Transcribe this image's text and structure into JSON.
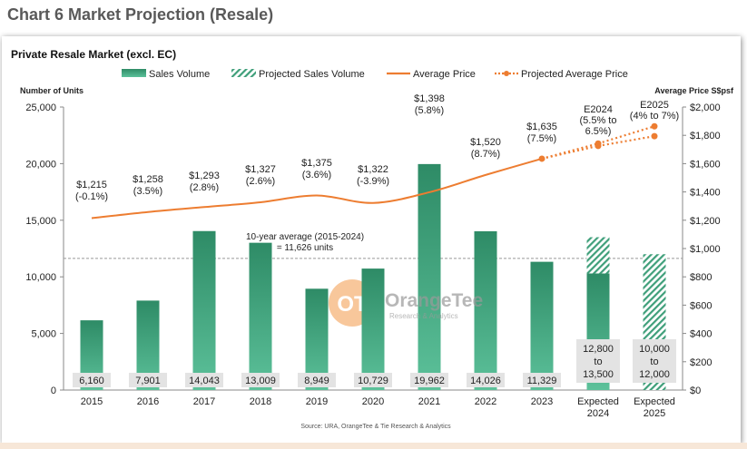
{
  "page": {
    "heading": "Chart 6 Market Projection (Resale)"
  },
  "chart_data": {
    "type": "bar",
    "title": "Private Resale Market (excl. EC)",
    "ylabel_left": "Number of Units",
    "ylabel_right": "Average Price S$psf",
    "ylim_left": [
      0,
      25000
    ],
    "ylim_right": [
      0,
      2000
    ],
    "yticks_left": [
      "0",
      "5,000",
      "10,000",
      "15,000",
      "20,000",
      "25,000"
    ],
    "yticks_right": [
      "$0",
      "$200",
      "$400",
      "$600",
      "$800",
      "$1,000",
      "$1,200",
      "$1,400",
      "$1,600",
      "$1,800",
      "$2,000"
    ],
    "categories": [
      "2015",
      "2016",
      "2017",
      "2018",
      "2019",
      "2020",
      "2021",
      "2022",
      "2023",
      "Expected\n2024",
      "Expected\n2025"
    ],
    "legend": [
      "Sales Volume",
      "Projected Sales Volume",
      "Average Price",
      "Projected Average Price"
    ],
    "sales_volume": [
      6160,
      7901,
      14043,
      13009,
      8949,
      10729,
      19962,
      14026,
      11329,
      10300,
      0
    ],
    "projected_sales_volume": [
      null,
      null,
      null,
      null,
      null,
      null,
      null,
      null,
      null,
      [
        10300,
        13500
      ],
      [
        0,
        12000
      ]
    ],
    "volume_labels": [
      "6,160",
      "7,901",
      "14,043",
      "13,009",
      "8,949",
      "10,729",
      "19,962",
      "14,026",
      "11,329",
      "12,800\nto\n13,500",
      "10,000\nto\n12,000"
    ],
    "average_price": [
      1215,
      1258,
      1293,
      1327,
      1375,
      1322,
      1398,
      1520,
      1635
    ],
    "price_labels": [
      "$1,215\n(-0.1%)",
      "$1,258\n(3.5%)",
      "$1,293\n(2.8%)",
      "$1,327\n(2.6%)",
      "$1,375\n(3.6%)",
      "$1,322\n(-3.9%)",
      "$1,398\n(5.8%)",
      "$1,520\n(8.7%)",
      "$1,635\n(7.5%)"
    ],
    "projected_average_price": [
      {
        "category": "Expected\n2024",
        "low": 1725,
        "high": 1742
      },
      {
        "category": "Expected\n2025",
        "low": 1794,
        "high": 1864
      }
    ],
    "projected_price_labels": [
      "E2024\n(5.5% to\n6.5%)",
      "E2025\n(4% to 7%)"
    ],
    "reference_line": {
      "value": 11626,
      "label": "10-year average (2015-2024)\n= 11,626 units"
    },
    "source": "Source: URA, OrangeTee & Tie Research & Analytics",
    "watermark": {
      "name": "OrangeTee",
      "sub": "Research & Analytics"
    },
    "colors": {
      "bar_top": "#2e8b66",
      "bar_bottom": "#5cc19a",
      "hatch": "#3f9f7a",
      "price_line": "#ed7d31",
      "label_bg": "#e3e3e3",
      "ref_line": "#999999"
    },
    "grid": false,
    "legend_position": "top"
  }
}
